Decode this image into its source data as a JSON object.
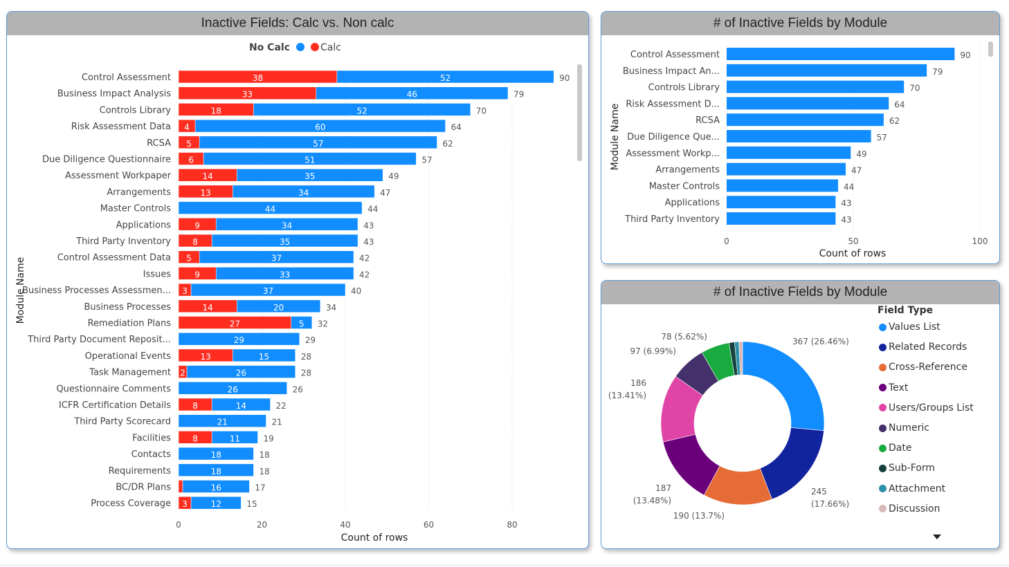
{
  "chart_data": [
    {
      "type": "bar",
      "orientation": "horizontal",
      "stacked": true,
      "title": "Inactive Fields: Calc vs. Non calc",
      "xlabel": "Count of rows",
      "ylabel": "Module Name",
      "xlim": [
        0,
        95
      ],
      "xticks": [
        0,
        20,
        40,
        60,
        80
      ],
      "legend": {
        "title": "No Calc",
        "placement": "top",
        "entries": [
          "No Calc",
          "Calc"
        ]
      },
      "categories": [
        "Control Assessment",
        "Business Impact Analysis",
        "Controls Library",
        "Risk Assessment Data",
        "RCSA",
        "Due Diligence Questionnaire",
        "Assessment Workpaper",
        "Arrangements",
        "Master Controls",
        "Applications",
        "Third Party Inventory",
        "Control Assessment Data",
        "Issues",
        "Business Processes Assessmen...",
        "Business Processes",
        "Remediation Plans",
        "Third Party Document Reposit...",
        "Operational Events",
        "Task Management",
        "Questionnaire Comments",
        "ICFR Certification Details",
        "Third Party Scorecard",
        "Facilities",
        "Contacts",
        "Requirements",
        "BC/DR Plans",
        "Process Coverage"
      ],
      "series": [
        {
          "name": "Calc",
          "color": "#ff2d20",
          "values": [
            38,
            33,
            18,
            4,
            5,
            6,
            14,
            13,
            0,
            9,
            8,
            5,
            9,
            3,
            14,
            27,
            0,
            13,
            2,
            0,
            8,
            0,
            8,
            0,
            0,
            1,
            3
          ]
        },
        {
          "name": "No Calc",
          "color": "#118dff",
          "values": [
            52,
            46,
            52,
            60,
            57,
            51,
            35,
            34,
            44,
            34,
            35,
            37,
            33,
            37,
            20,
            5,
            29,
            15,
            26,
            26,
            14,
            21,
            11,
            18,
            18,
            16,
            12
          ]
        }
      ],
      "totals": [
        90,
        79,
        70,
        64,
        62,
        57,
        49,
        47,
        44,
        43,
        43,
        42,
        42,
        40,
        34,
        32,
        29,
        28,
        28,
        26,
        22,
        21,
        19,
        18,
        18,
        17,
        15
      ]
    },
    {
      "type": "bar",
      "orientation": "horizontal",
      "title": "# of Inactive Fields by Module",
      "xlabel": "Count of rows",
      "ylabel": "Module Name",
      "xlim": [
        0,
        100
      ],
      "xticks": [
        0,
        50,
        100
      ],
      "color": "#118dff",
      "categories": [
        "Control Assessment",
        "Business Impact An...",
        "Controls Library",
        "Risk Assessment D...",
        "RCSA",
        "Due Diligence Que...",
        "Assessment Workp...",
        "Arrangements",
        "Master Controls",
        "Applications",
        "Third Party Inventory"
      ],
      "values": [
        90,
        79,
        70,
        64,
        62,
        57,
        49,
        47,
        44,
        43,
        43
      ]
    },
    {
      "type": "pie",
      "donut": true,
      "title": "# of Inactive Fields by Module",
      "legend": {
        "title": "Field Type",
        "placement": "right"
      },
      "slices": [
        {
          "name": "Values List",
          "value": 367,
          "label": "367 (26.46%)",
          "color": "#118dff"
        },
        {
          "name": "Related Records",
          "value": 245,
          "label": "245 (17.66%)",
          "color": "#12239e"
        },
        {
          "name": "Cross-Reference",
          "value": 190,
          "label": "190 (13.7%)",
          "color": "#e66c37"
        },
        {
          "name": "Text",
          "value": 187,
          "label": "187 (13.48%)",
          "color": "#6b007b"
        },
        {
          "name": "Users/Groups List",
          "value": 186,
          "label": "186 (13.41%)",
          "color": "#e044a7"
        },
        {
          "name": "Numeric",
          "value": 97,
          "label": "97 (6.99%)",
          "color": "#44306b"
        },
        {
          "name": "Date",
          "value": 78,
          "label": "78 (5.62%)",
          "color": "#1aab40"
        },
        {
          "name": "Sub-Form",
          "value": 15,
          "label": "",
          "color": "#15423f"
        },
        {
          "name": "Attachment",
          "value": 12,
          "label": "",
          "color": "#2f91a9"
        },
        {
          "name": "Discussion",
          "value": 10,
          "label": "",
          "color": "#d9b8b8"
        }
      ]
    }
  ]
}
